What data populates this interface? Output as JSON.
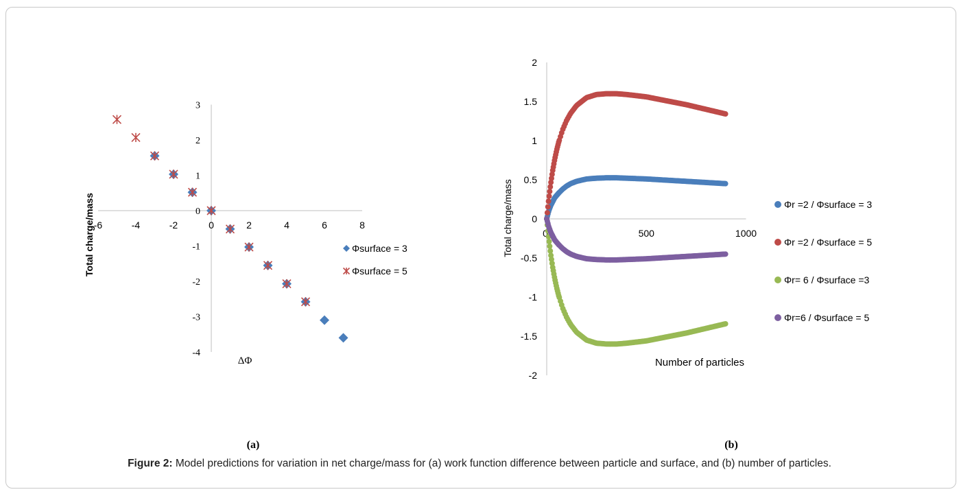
{
  "figure": {
    "caption_label": "Figure 2:",
    "caption_text": "Model predictions for variation in net charge/mass for (a) work function difference between particle and surface, and (b) number of particles."
  },
  "colors": {
    "blue": "#4a7ebb",
    "red": "#be4b48",
    "green": "#98b954",
    "purple": "#7d5fa0"
  },
  "chart_data": [
    {
      "type": "scatter",
      "panel_label": "(a)",
      "xlabel": "ΔΦ",
      "ylabel": "Total charge/mass",
      "xlim": [
        -6,
        8
      ],
      "ylim": [
        -4,
        3
      ],
      "x_ticks": [
        "-6",
        "-4",
        "-2",
        "0",
        "2",
        "4",
        "6",
        "8"
      ],
      "y_ticks": [
        "3",
        "2",
        "1",
        "0",
        "-1",
        "-2",
        "-3",
        "-4"
      ],
      "grid": false,
      "legend_position": "right",
      "series": [
        {
          "name": "Φsurface  = 3",
          "marker": "diamond",
          "color": "#4a7ebb",
          "x": [
            -3,
            -2,
            -1,
            0,
            1,
            2,
            3,
            4,
            5,
            6,
            7
          ],
          "y": [
            1.55,
            1.03,
            0.52,
            0,
            -0.52,
            -1.03,
            -1.55,
            -2.07,
            -2.58,
            -3.1,
            -3.6
          ]
        },
        {
          "name": "Φsurface  = 5",
          "marker": "star",
          "color": "#be4b48",
          "x": [
            -5,
            -4,
            -3,
            -2,
            -1,
            0,
            1,
            2,
            3,
            4,
            5
          ],
          "y": [
            2.58,
            2.07,
            1.55,
            1.03,
            0.52,
            0,
            -0.52,
            -1.03,
            -1.55,
            -2.07,
            -2.58
          ]
        }
      ]
    },
    {
      "type": "scatter",
      "panel_label": "(b)",
      "xlabel": "Number of particles",
      "ylabel": "Total charge/mass",
      "xlim": [
        0,
        1000
      ],
      "ylim": [
        -2,
        2
      ],
      "x_ticks": [
        "0",
        "500",
        "1000"
      ],
      "y_ticks": [
        "2",
        "1.5",
        "1",
        "0.5",
        "0",
        "-0.5",
        "-1",
        "-1.5",
        "-2"
      ],
      "grid": false,
      "legend_position": "right",
      "series": [
        {
          "name": "Φr  =2 / Φsurface  = 3",
          "color": "#4a7ebb",
          "x": [
            0,
            5,
            10,
            20,
            30,
            40,
            50,
            60,
            80,
            100,
            120,
            150,
            200,
            250,
            300,
            350,
            400,
            450,
            500,
            600,
            700,
            800,
            900
          ],
          "y": [
            0,
            0.05,
            0.1,
            0.17,
            0.22,
            0.27,
            0.3,
            0.33,
            0.38,
            0.42,
            0.45,
            0.48,
            0.51,
            0.52,
            0.525,
            0.525,
            0.52,
            0.515,
            0.51,
            0.495,
            0.48,
            0.465,
            0.45
          ]
        },
        {
          "name": "Φr =2 / Φsurface  = 5",
          "color": "#be4b48",
          "x": [
            0,
            5,
            10,
            20,
            30,
            40,
            50,
            60,
            80,
            100,
            120,
            150,
            200,
            250,
            300,
            350,
            400,
            450,
            500,
            600,
            700,
            800,
            900
          ],
          "y": [
            0,
            0.13,
            0.25,
            0.45,
            0.62,
            0.76,
            0.88,
            0.98,
            1.14,
            1.26,
            1.35,
            1.45,
            1.55,
            1.59,
            1.6,
            1.6,
            1.59,
            1.575,
            1.56,
            1.51,
            1.46,
            1.4,
            1.34
          ]
        },
        {
          "name": "Φr= 6 / Φsurface  =3",
          "color": "#98b954",
          "x": [
            0,
            5,
            10,
            20,
            30,
            40,
            50,
            60,
            80,
            100,
            120,
            150,
            200,
            250,
            300,
            350,
            400,
            450,
            500,
            600,
            700,
            800,
            900
          ],
          "y": [
            0,
            -0.13,
            -0.25,
            -0.45,
            -0.62,
            -0.76,
            -0.88,
            -0.98,
            -1.14,
            -1.26,
            -1.35,
            -1.45,
            -1.55,
            -1.59,
            -1.6,
            -1.6,
            -1.59,
            -1.575,
            -1.56,
            -1.51,
            -1.46,
            -1.4,
            -1.34
          ]
        },
        {
          "name": "Φr=6 / Φsurface  = 5",
          "color": "#7d5fa0",
          "x": [
            0,
            5,
            10,
            20,
            30,
            40,
            50,
            60,
            80,
            100,
            120,
            150,
            200,
            250,
            300,
            350,
            400,
            450,
            500,
            600,
            700,
            800,
            900
          ],
          "y": [
            0,
            -0.05,
            -0.1,
            -0.17,
            -0.22,
            -0.27,
            -0.3,
            -0.33,
            -0.38,
            -0.42,
            -0.45,
            -0.48,
            -0.51,
            -0.52,
            -0.525,
            -0.525,
            -0.52,
            -0.515,
            -0.51,
            -0.495,
            -0.48,
            -0.465,
            -0.45
          ]
        }
      ]
    }
  ]
}
